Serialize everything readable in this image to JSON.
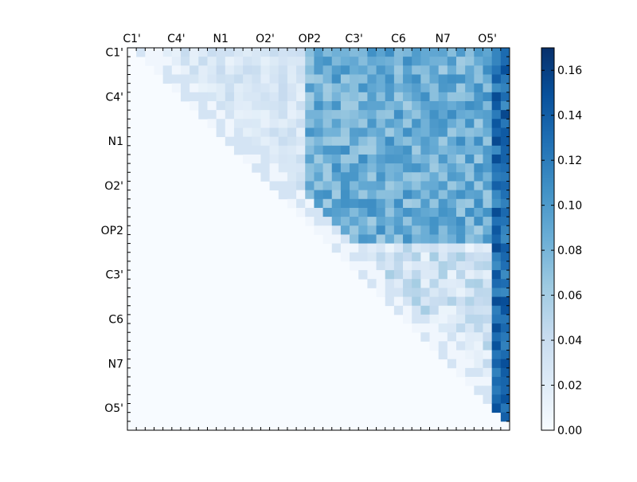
{
  "chart_data": {
    "type": "heatmap",
    "title": "",
    "xlabel": "",
    "ylabel": "",
    "colormap": "Blues",
    "value_range": [
      0.0,
      0.17
    ],
    "matrix_size": 43,
    "tick_labels": [
      "C1'",
      "C4'",
      "N1",
      "O2'",
      "OP2",
      "C3'",
      "C6",
      "N7",
      "O5'"
    ],
    "x_tick_indices": [
      0,
      5,
      10,
      15,
      20,
      25,
      30,
      35,
      40
    ],
    "y_tick_labels": [
      "C1'",
      "C4'",
      "N1",
      "O2'",
      "OP2",
      "C3'",
      "C6",
      "N7",
      "O5'"
    ],
    "y_tick_indices": [
      0,
      5,
      10,
      15,
      20,
      25,
      30,
      35,
      40
    ],
    "colorbar_ticks": [
      "0.00",
      "0.02",
      "0.04",
      "0.06",
      "0.08",
      "0.10",
      "0.12",
      "0.14",
      "0.16"
    ],
    "colorbar_tick_values": [
      0.0,
      0.02,
      0.04,
      0.06,
      0.08,
      0.1,
      0.12,
      0.14,
      0.16
    ],
    "upper_triangle_only": true,
    "block_boundary_index": 22,
    "block_levels": {
      "near_diagonal": 0.02,
      "upper_left_block": 0.03,
      "cross_block": 0.085,
      "lower_right_block": 0.04,
      "last_columns": 0.13
    }
  }
}
